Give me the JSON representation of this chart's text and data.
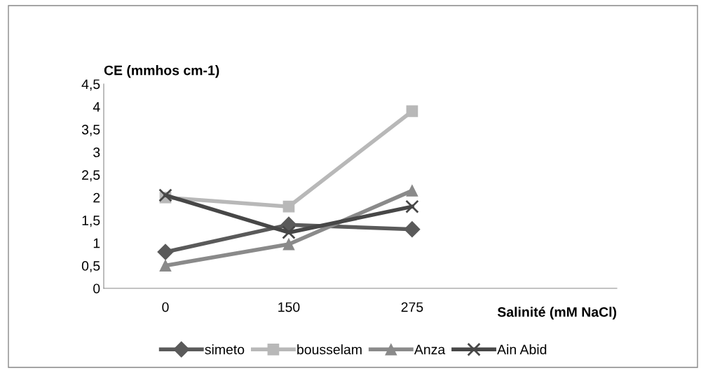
{
  "chart_data": {
    "type": "line",
    "xlabel": "Salinité (mM NaCl)",
    "ylabel": "CE (mmhos cm-1)",
    "categories": [
      "0",
      "150",
      "275"
    ],
    "ylim": [
      0,
      4.5
    ],
    "yticks": [
      0,
      {
        "value": 0.5,
        "label": "0,5"
      },
      1,
      {
        "value": 1.5,
        "label": "1,5"
      },
      2,
      {
        "value": 2.5,
        "label": "2,5"
      },
      3,
      {
        "value": 3.5,
        "label": "3,5"
      },
      4,
      {
        "value": 4.5,
        "label": "4,5"
      }
    ],
    "grid": false,
    "legend": "bottom",
    "series": [
      {
        "name": "simeto",
        "color": "#5a5a5a",
        "marker": "diamond",
        "values": [
          0.8,
          1.4,
          1.3
        ]
      },
      {
        "name": "bousselam",
        "color": "#b8b8b8",
        "marker": "square",
        "values": [
          2.0,
          1.8,
          3.9
        ]
      },
      {
        "name": "Anza",
        "color": "#8a8a8a",
        "marker": "triangle",
        "values": [
          0.5,
          0.97,
          2.15
        ]
      },
      {
        "name": "Ain Abid",
        "color": "#474747",
        "marker": "cross",
        "values": [
          2.05,
          1.23,
          1.8
        ]
      }
    ]
  }
}
